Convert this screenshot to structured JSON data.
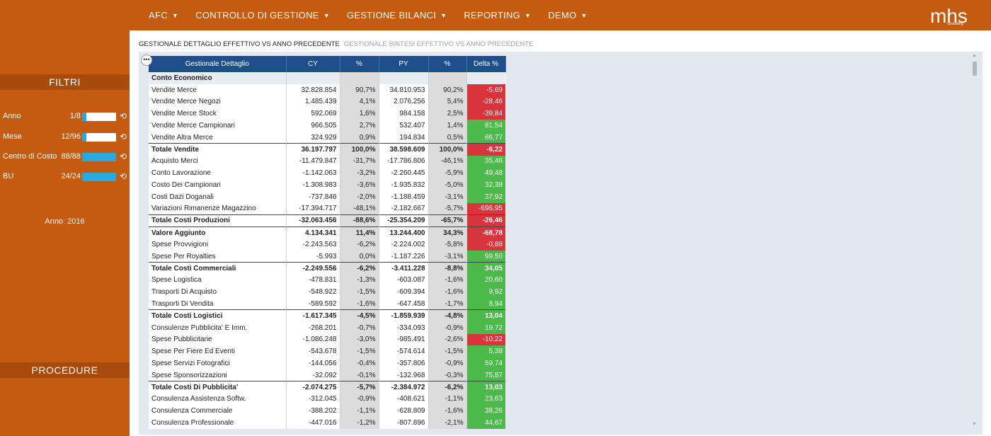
{
  "nav": [
    {
      "label": "AFC"
    },
    {
      "label": "CONTROLLO DI GESTIONE"
    },
    {
      "label": "GESTIONE BILANCI"
    },
    {
      "label": "REPORTING"
    },
    {
      "label": "DEMO"
    }
  ],
  "logo": {
    "brand": "mhs",
    "sub": "consulting"
  },
  "sidebar": {
    "filtri_title": "FILTRI",
    "filters": [
      {
        "name": "Anno",
        "value": "1/8",
        "fill": 0.125
      },
      {
        "name": "Mese",
        "value": "12/96",
        "fill": 0.125
      },
      {
        "name": "Centro di Costo",
        "value": "88/88",
        "fill": 1.0
      },
      {
        "name": "BU",
        "value": "24/24",
        "fill": 1.0
      }
    ],
    "year_text": "Anno: 2016",
    "procedure_title": "PROCEDURE"
  },
  "tabs": [
    {
      "label": "GESTIONALE DETTAGLIO EFFETTIVO VS ANNO PRECEDENTE",
      "active": true
    },
    {
      "label": "GESTIONALE SINTESI EFFETTIVO VS ANNO PRECEDENTE",
      "active": false
    }
  ],
  "table": {
    "headers": [
      "Gestionale Dettaglio",
      "CY",
      "%",
      "PY",
      "%",
      "Delta %"
    ],
    "rows": [
      {
        "label": "Conto Economico",
        "type": "section",
        "cy": "",
        "cyp": "",
        "py": "",
        "pyp": "",
        "delta": "",
        "dc": ""
      },
      {
        "label": "Vendite Merce",
        "type": "normal",
        "cy": "32.828.854",
        "cyp": "90,7%",
        "py": "34.810.953",
        "pyp": "90,2%",
        "delta": "-5,69",
        "dc": "red"
      },
      {
        "label": "Vendite Merce Negozi",
        "type": "normal",
        "cy": "1.485.439",
        "cyp": "4,1%",
        "py": "2.076.256",
        "pyp": "5,4%",
        "delta": "-28,46",
        "dc": "red"
      },
      {
        "label": "Vendite Merce Stock",
        "type": "normal",
        "cy": "592.069",
        "cyp": "1,6%",
        "py": "984.158",
        "pyp": "2,5%",
        "delta": "-39,84",
        "dc": "red"
      },
      {
        "label": "Vendite Merce Campionari",
        "type": "normal",
        "cy": "966.505",
        "cyp": "2,7%",
        "py": "532.407",
        "pyp": "1,4%",
        "delta": "81,54",
        "dc": "green"
      },
      {
        "label": "Vendite Altra Merce",
        "type": "normal",
        "cy": "324.929",
        "cyp": "0,9%",
        "py": "194.834",
        "pyp": "0,5%",
        "delta": "66,77",
        "dc": "green"
      },
      {
        "label": "Totale Vendite",
        "type": "bold",
        "cy": "36.197.797",
        "cyp": "100,0%",
        "py": "38.598.609",
        "pyp": "100,0%",
        "delta": "-6,22",
        "dc": "red"
      },
      {
        "label": "Acquisto Merci",
        "type": "normal",
        "cy": "-11.479.847",
        "cyp": "-31,7%",
        "py": "-17.786.806",
        "pyp": "-46,1%",
        "delta": "35,46",
        "dc": "green"
      },
      {
        "label": "Conto Lavorazione",
        "type": "normal",
        "cy": "-1.142.063",
        "cyp": "-3,2%",
        "py": "-2.260.445",
        "pyp": "-5,9%",
        "delta": "49,48",
        "dc": "green"
      },
      {
        "label": "Costo Dei Campionari",
        "type": "normal",
        "cy": "-1.308.983",
        "cyp": "-3,6%",
        "py": "-1.935.832",
        "pyp": "-5,0%",
        "delta": "32,38",
        "dc": "green"
      },
      {
        "label": "Costi Dazi Doganali",
        "type": "normal",
        "cy": "-737.846",
        "cyp": "-2,0%",
        "py": "-1.188.459",
        "pyp": "-3,1%",
        "delta": "37,92",
        "dc": "green"
      },
      {
        "label": "Variazioni Rimanenze Magazzino",
        "type": "normal",
        "cy": "-17.394.717",
        "cyp": "-48,1%",
        "py": "-2.182.667",
        "pyp": "-5,7%",
        "delta": "-696,95",
        "dc": "red"
      },
      {
        "label": "Totale Costi Produzioni",
        "type": "bold",
        "cy": "-32.063.456",
        "cyp": "-88,6%",
        "py": "-25.354.209",
        "pyp": "-65,7%",
        "delta": "-26,46",
        "dc": "red"
      },
      {
        "label": "Valore Aggiunto",
        "type": "bold",
        "cy": "4.134.341",
        "cyp": "11,4%",
        "py": "13.244.400",
        "pyp": "34,3%",
        "delta": "-68,78",
        "dc": "red"
      },
      {
        "label": "Spese Provvigioni",
        "type": "normal",
        "cy": "-2.243.563",
        "cyp": "-6,2%",
        "py": "-2.224.002",
        "pyp": "-5,8%",
        "delta": "-0,88",
        "dc": "red"
      },
      {
        "label": "Spese Per Royalties",
        "type": "normal",
        "cy": "-5.993",
        "cyp": "0,0%",
        "py": "-1.187.226",
        "pyp": "-3,1%",
        "delta": "99,50",
        "dc": "green"
      },
      {
        "label": "Totale Costi Commerciali",
        "type": "bold",
        "cy": "-2.249.556",
        "cyp": "-6,2%",
        "py": "-3.411.228",
        "pyp": "-8,8%",
        "delta": "34,05",
        "dc": "green"
      },
      {
        "label": "Spese Logistica",
        "type": "normal",
        "cy": "-478.831",
        "cyp": "-1,3%",
        "py": "-603.087",
        "pyp": "-1,6%",
        "delta": "20,60",
        "dc": "green"
      },
      {
        "label": "Trasporti Di Acquisto",
        "type": "normal",
        "cy": "-548.922",
        "cyp": "-1,5%",
        "py": "-609.394",
        "pyp": "-1,6%",
        "delta": "9,92",
        "dc": "green"
      },
      {
        "label": "Trasporti Di Vendita",
        "type": "normal",
        "cy": "-589.592",
        "cyp": "-1,6%",
        "py": "-647.458",
        "pyp": "-1,7%",
        "delta": "8,94",
        "dc": "green"
      },
      {
        "label": "Totale Costi Logistici",
        "type": "bold",
        "cy": "-1.617.345",
        "cyp": "-4,5%",
        "py": "-1.859.939",
        "pyp": "-4,8%",
        "delta": "13,04",
        "dc": "green"
      },
      {
        "label": "Consulenze Pubblicita' E Imm.",
        "type": "normal",
        "cy": "-268.201",
        "cyp": "-0,7%",
        "py": "-334.093",
        "pyp": "-0,9%",
        "delta": "19,72",
        "dc": "green"
      },
      {
        "label": "Spese Pubblicitarie",
        "type": "normal",
        "cy": "-1.086.248",
        "cyp": "-3,0%",
        "py": "-985.491",
        "pyp": "-2,6%",
        "delta": "-10,22",
        "dc": "red"
      },
      {
        "label": "Spese Per Fiere Ed Eventi",
        "type": "normal",
        "cy": "-543.678",
        "cyp": "-1,5%",
        "py": "-574.614",
        "pyp": "-1,5%",
        "delta": "5,38",
        "dc": "green"
      },
      {
        "label": "Spese Servizi Fotografici",
        "type": "normal",
        "cy": "-144.056",
        "cyp": "-0,4%",
        "py": "-357.806",
        "pyp": "-0,9%",
        "delta": "59,74",
        "dc": "green"
      },
      {
        "label": "Spese Sponsorizzazioni",
        "type": "normal",
        "cy": "-32.092",
        "cyp": "-0,1%",
        "py": "-132.968",
        "pyp": "-0,3%",
        "delta": "75,87",
        "dc": "green"
      },
      {
        "label": "Totale Costi Di Pubblicita'",
        "type": "bold",
        "cy": "-2.074.275",
        "cyp": "-5,7%",
        "py": "-2.384.972",
        "pyp": "-6,2%",
        "delta": "13,03",
        "dc": "green"
      },
      {
        "label": "Consulenza Assistenza Softw.",
        "type": "normal",
        "cy": "-312.045",
        "cyp": "-0,9%",
        "py": "-408.621",
        "pyp": "-1,1%",
        "delta": "23,63",
        "dc": "green"
      },
      {
        "label": "Consulenza Commerciale",
        "type": "normal",
        "cy": "-388.202",
        "cyp": "-1,1%",
        "py": "-628.809",
        "pyp": "-1,6%",
        "delta": "38,26",
        "dc": "green"
      },
      {
        "label": "Consulenza Professionale",
        "type": "normal",
        "cy": "-447.016",
        "cyp": "-1,2%",
        "py": "-807.896",
        "pyp": "-2,1%",
        "delta": "44,67",
        "dc": "green"
      }
    ]
  },
  "colors": {
    "brand": "#c55a11",
    "header": "#1f4e8c",
    "negative": "#d9343c",
    "positive": "#4cba4a",
    "filter_fill": "#29a9e1"
  },
  "icons": {
    "nav_caret": "caret-down-icon",
    "reset": "reset-icon",
    "more": "more-options-icon"
  }
}
